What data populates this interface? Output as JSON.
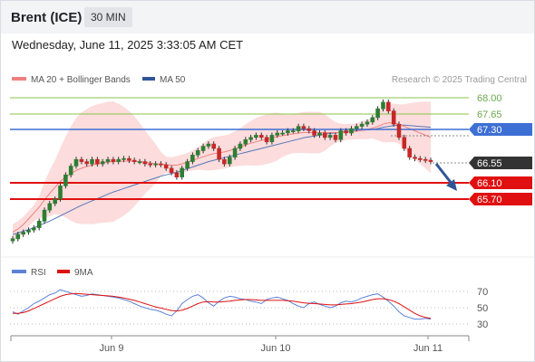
{
  "header": {
    "instrument": "Brent (ICE)",
    "timeframe": "30 MIN"
  },
  "datetime": "Wednesday, June 11, 2025 3:33:05 AM CET",
  "legend": {
    "ma20_label": "MA 20 + Bollinger Bands",
    "ma50_label": "MA 50",
    "credit": "Research © 2025 Trading Central",
    "rsi_label": "RSI",
    "rsi_ma_label": "9MA"
  },
  "colors": {
    "bullish_candle": "#2e7d32",
    "bearish_candle": "#c62828",
    "resistance_line": "#8bc34a",
    "pivot_line": "#3d6fd4",
    "support_line": "#e01010",
    "current_price_box": "#333333",
    "bollinger_fill": "#fbd3d3",
    "ma20_line": "#f08080",
    "ma50_line": "#5577bb",
    "rsi_line": "#5b82d8",
    "rsi_ma_line": "#dd1111",
    "arrow": "#2f5597"
  },
  "chart_data": {
    "type": "candlestick",
    "x_tick_labels": [
      "Jun 9",
      "Jun 10",
      "Jun 11"
    ],
    "price_levels": [
      {
        "value": 68.0,
        "label": "68.00",
        "kind": "resistance"
      },
      {
        "value": 67.65,
        "label": "67.65",
        "kind": "resistance"
      },
      {
        "value": 67.3,
        "label": "67.30",
        "kind": "pivot"
      },
      {
        "value": 66.55,
        "label": "66.55",
        "kind": "last-price"
      },
      {
        "value": 66.1,
        "label": "66.10",
        "kind": "support"
      },
      {
        "value": 65.7,
        "label": "65.70",
        "kind": "support"
      }
    ],
    "closes": [
      64.8,
      64.9,
      64.95,
      65.0,
      65.05,
      65.2,
      65.45,
      65.6,
      65.7,
      66.0,
      66.25,
      66.45,
      66.6,
      66.55,
      66.5,
      66.6,
      66.5,
      66.55,
      66.6,
      66.55,
      66.6,
      66.62,
      66.58,
      66.55,
      66.55,
      66.5,
      66.48,
      66.5,
      66.48,
      66.4,
      66.3,
      66.2,
      66.4,
      66.55,
      66.7,
      66.8,
      66.9,
      66.95,
      66.85,
      66.6,
      66.5,
      66.65,
      66.85,
      66.95,
      67.05,
      67.1,
      67.15,
      67.1,
      67.0,
      67.15,
      67.2,
      67.2,
      67.25,
      67.25,
      67.35,
      67.3,
      67.25,
      67.15,
      67.2,
      67.1,
      67.15,
      67.05,
      67.25,
      67.2,
      67.3,
      67.35,
      67.4,
      67.45,
      67.55,
      67.75,
      67.9,
      67.7,
      67.4,
      67.1,
      66.85,
      66.65,
      66.62,
      66.6,
      66.58,
      66.55
    ],
    "ma20": [
      64.95,
      65.02,
      65.12,
      65.25,
      65.38,
      65.52,
      65.68,
      65.83,
      65.97,
      66.1,
      66.2,
      66.28,
      66.35,
      66.4,
      66.44,
      66.47,
      66.5,
      66.52,
      66.54,
      66.55,
      66.56,
      66.56,
      66.56,
      66.56,
      66.55,
      66.54,
      66.52,
      66.5,
      66.49,
      66.48,
      66.47,
      66.47,
      66.5,
      66.54,
      66.58,
      66.62,
      66.66,
      66.7,
      66.73,
      66.75,
      66.77,
      66.8,
      66.84,
      66.88,
      66.93,
      66.97,
      67.0,
      67.03,
      67.06,
      67.09,
      67.12,
      67.14,
      67.16,
      67.18,
      67.2,
      67.21,
      67.21,
      67.21,
      67.21,
      67.21,
      67.21,
      67.21,
      67.21,
      67.22,
      67.23,
      67.24,
      67.26,
      67.28,
      67.31,
      67.35,
      67.4,
      67.43,
      67.43,
      67.4,
      67.35,
      67.3,
      67.25,
      67.2,
      67.15,
      67.1
    ],
    "ma50": [
      64.9,
      64.93,
      64.97,
      65.01,
      65.05,
      65.1,
      65.15,
      65.2,
      65.26,
      65.32,
      65.38,
      65.44,
      65.5,
      65.56,
      65.61,
      65.66,
      65.71,
      65.76,
      65.81,
      65.86,
      65.9,
      65.94,
      65.98,
      66.02,
      66.06,
      66.1,
      66.14,
      66.18,
      66.22,
      66.25,
      66.28,
      66.31,
      66.35,
      66.39,
      66.43,
      66.47,
      66.51,
      66.55,
      66.58,
      66.61,
      66.64,
      66.67,
      66.7,
      66.73,
      66.76,
      66.79,
      66.82,
      66.85,
      66.88,
      66.91,
      66.94,
      66.97,
      67.0,
      67.03,
      67.06,
      67.09,
      67.11,
      67.13,
      67.15,
      67.17,
      67.19,
      67.2,
      67.22,
      67.23,
      67.24,
      67.25,
      67.26,
      67.27,
      67.28,
      67.3,
      67.33,
      67.35,
      67.37,
      67.38,
      67.38,
      67.37,
      67.36,
      67.35,
      67.34,
      67.33
    ],
    "rsi": {
      "ticks": [
        70,
        50,
        30
      ],
      "ylim": [
        20,
        80
      ],
      "values": [
        45,
        42,
        46,
        50,
        55,
        58,
        62,
        66,
        68,
        72,
        70,
        68,
        66,
        64,
        65,
        67,
        66,
        65,
        64,
        63,
        62,
        60,
        58,
        55,
        52,
        50,
        48,
        47,
        45,
        42,
        40,
        46,
        55,
        60,
        64,
        66,
        62,
        56,
        52,
        58,
        62,
        64,
        63,
        61,
        60,
        58,
        57,
        55,
        60,
        62,
        63,
        61,
        59,
        55,
        52,
        50,
        55,
        57,
        54,
        52,
        50,
        52,
        56,
        58,
        57,
        59,
        62,
        64,
        66,
        67,
        63,
        58,
        52,
        45,
        40,
        38,
        36,
        36,
        37,
        36
      ],
      "ma": [
        43,
        43,
        44,
        46,
        49,
        52,
        55,
        58,
        61,
        64,
        66,
        67,
        67.5,
        67,
        66.5,
        66,
        65.5,
        65,
        64.5,
        64,
        63,
        62,
        60.5,
        59,
        57,
        55,
        53,
        51,
        49.5,
        48,
        46.5,
        46,
        47,
        49,
        52,
        55,
        57,
        57.5,
        57,
        57,
        57.5,
        58,
        59,
        59.5,
        60,
        60,
        59.5,
        59,
        59,
        59,
        59,
        59,
        58.5,
        58,
        57,
        56,
        55.5,
        55,
        54.5,
        54,
        53.5,
        53.5,
        54,
        54.5,
        55,
        56,
        57,
        58.5,
        60,
        61,
        61,
        60,
        58,
        55,
        51,
        47,
        43,
        40,
        38,
        37
      ]
    }
  }
}
